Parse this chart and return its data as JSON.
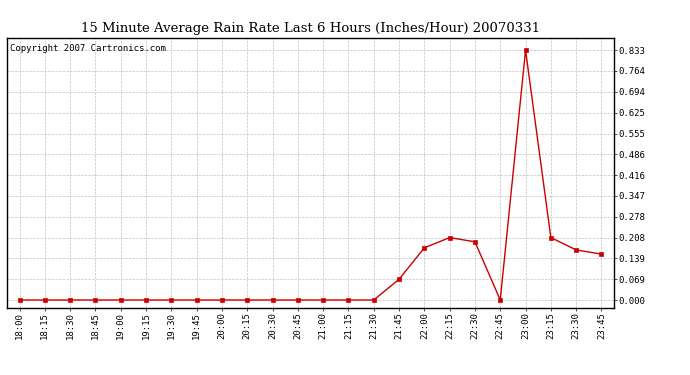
{
  "title": "15 Minute Average Rain Rate Last 6 Hours (Inches/Hour) 20070331",
  "copyright": "Copyright 2007 Cartronics.com",
  "x_labels": [
    "18:00",
    "18:15",
    "18:30",
    "18:45",
    "19:00",
    "19:15",
    "19:30",
    "19:45",
    "20:00",
    "20:15",
    "20:30",
    "20:45",
    "21:00",
    "21:15",
    "21:30",
    "21:45",
    "22:00",
    "22:15",
    "22:30",
    "22:45",
    "23:00",
    "23:15",
    "23:30",
    "23:45"
  ],
  "y_values": [
    0.0,
    0.0,
    0.0,
    0.0,
    0.0,
    0.0,
    0.0,
    0.0,
    0.0,
    0.0,
    0.0,
    0.0,
    0.0,
    0.0,
    0.0,
    0.069,
    0.174,
    0.208,
    0.194,
    0.0,
    0.833,
    0.208,
    0.167,
    0.153
  ],
  "line_color": "#cc0000",
  "marker_color": "#cc0000",
  "bg_color": "#ffffff",
  "grid_color": "#c0c0c0",
  "title_fontsize": 9.5,
  "copyright_fontsize": 6.5,
  "tick_fontsize": 6.5,
  "y_ticks": [
    0.0,
    0.069,
    0.139,
    0.208,
    0.278,
    0.347,
    0.416,
    0.486,
    0.555,
    0.625,
    0.694,
    0.764,
    0.833
  ],
  "ylim": [
    -0.025,
    0.875
  ]
}
